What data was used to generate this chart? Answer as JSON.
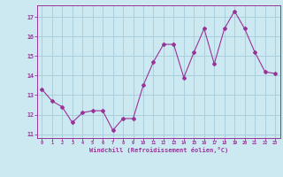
{
  "xlabel": "Windchill (Refroidissement éolien,°C)",
  "x": [
    0,
    1,
    2,
    3,
    4,
    5,
    6,
    7,
    8,
    9,
    10,
    11,
    12,
    13,
    14,
    15,
    16,
    17,
    18,
    19,
    20,
    21,
    22,
    23
  ],
  "y": [
    13.3,
    12.7,
    12.4,
    11.6,
    12.1,
    12.2,
    12.2,
    11.2,
    11.8,
    11.8,
    13.5,
    14.7,
    15.6,
    15.6,
    13.9,
    15.2,
    16.4,
    14.6,
    16.4,
    17.3,
    16.4,
    15.2,
    14.2,
    14.1
  ],
  "line_color": "#993399",
  "marker": "D",
  "marker_size": 2.0,
  "bg_color": "#cce8f0",
  "grid_color": "#aacfdc",
  "axis_color": "#993399",
  "tick_color": "#993399",
  "label_color": "#993399",
  "ylim": [
    10.8,
    17.6
  ],
  "xlim": [
    -0.5,
    23.5
  ],
  "yticks": [
    11,
    12,
    13,
    14,
    15,
    16,
    17
  ],
  "xticks": [
    0,
    1,
    2,
    3,
    4,
    5,
    6,
    7,
    8,
    9,
    10,
    11,
    12,
    13,
    14,
    15,
    16,
    17,
    18,
    19,
    20,
    21,
    22,
    23
  ]
}
